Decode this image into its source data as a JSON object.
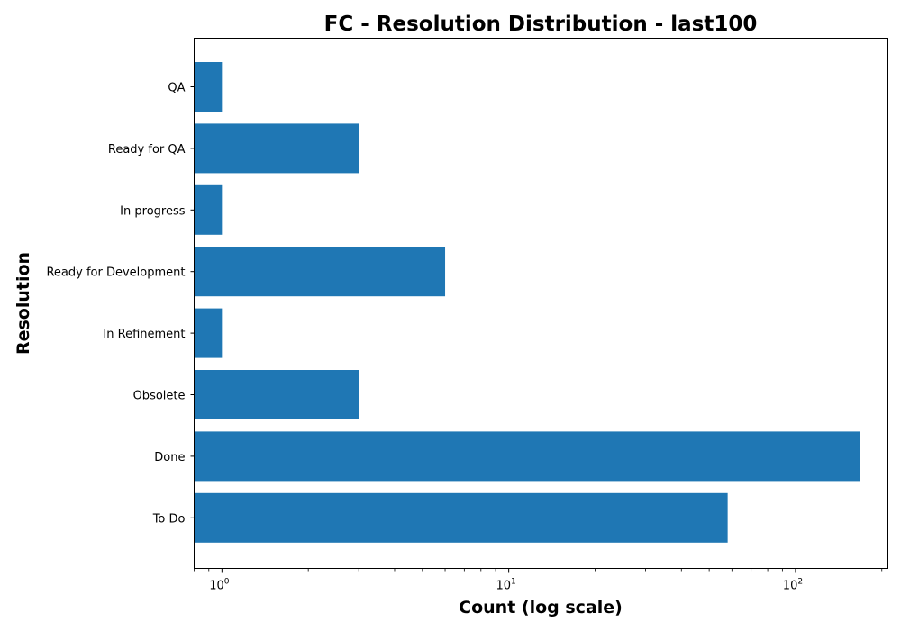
{
  "chart_data": {
    "type": "bar",
    "orientation": "horizontal",
    "title": "FC - Resolution Distribution - last100",
    "xlabel": "Count (log scale)",
    "ylabel": "Resolution",
    "x_scale": "log",
    "xlim": [
      0.8,
      210
    ],
    "categories": [
      "To Do",
      "Done",
      "Obsolete",
      "In Refinement",
      "Ready for Development",
      "In progress",
      "Ready for QA",
      "QA"
    ],
    "values": [
      58,
      168,
      3,
      1,
      6,
      1,
      3,
      1
    ],
    "bar_color": "#1f77b4",
    "x_ticks": [
      {
        "value": 1,
        "base": "10",
        "exp": "0"
      },
      {
        "value": 10,
        "base": "10",
        "exp": "1"
      },
      {
        "value": 100,
        "base": "10",
        "exp": "2"
      }
    ],
    "grid": false,
    "legend": "none"
  }
}
